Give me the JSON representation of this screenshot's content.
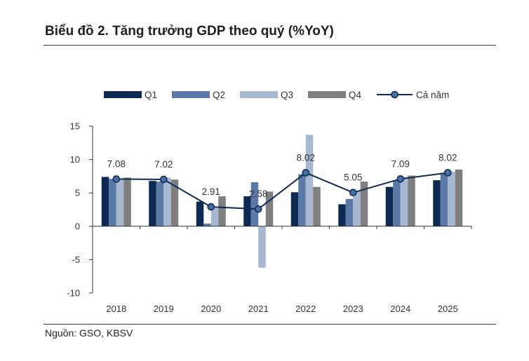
{
  "title": "Biểu đồ 2. Tăng trưởng GDP theo quý (%YoY)",
  "source": "Nguồn: GSO, KBSV",
  "chart_data": {
    "type": "bar",
    "categories": [
      "2018",
      "2019",
      "2020",
      "2021",
      "2022",
      "2023",
      "2024",
      "2025"
    ],
    "series": [
      {
        "name": "Q1",
        "color": "#0f2a52",
        "values": [
          7.4,
          6.8,
          3.7,
          4.5,
          5.1,
          3.3,
          5.9,
          6.9
        ]
      },
      {
        "name": "Q2",
        "color": "#5b79a6",
        "values": [
          7.1,
          6.7,
          0.4,
          6.6,
          7.8,
          4.1,
          6.9,
          8.0
        ]
      },
      {
        "name": "Q3",
        "color": "#a7b8d1",
        "values": [
          7.0,
          7.3,
          2.7,
          -6.2,
          13.7,
          5.3,
          7.4,
          8.2
        ]
      },
      {
        "name": "Q4",
        "color": "#7f7f7f",
        "values": [
          7.3,
          7.0,
          4.5,
          5.2,
          5.9,
          6.7,
          7.6,
          8.5
        ]
      }
    ],
    "line": {
      "name": "Cả năm",
      "color": "#0f2a52",
      "marker_fill": "#4a6fa5",
      "values": [
        7.08,
        7.02,
        2.91,
        2.58,
        8.02,
        5.05,
        7.09,
        8.02
      ],
      "labels": [
        "7.08",
        "7.02",
        "2.91",
        "2.58",
        "8.02",
        "5.05",
        "7.09",
        "8.02"
      ]
    },
    "ylim": [
      -10,
      15
    ],
    "yticks": [
      15,
      10,
      5,
      0,
      -5,
      -10
    ],
    "ytick_labels": [
      "15",
      "10",
      "5",
      "0",
      "-5",
      "-10"
    ],
    "legend_position": "top",
    "xlabel": "",
    "ylabel": ""
  }
}
